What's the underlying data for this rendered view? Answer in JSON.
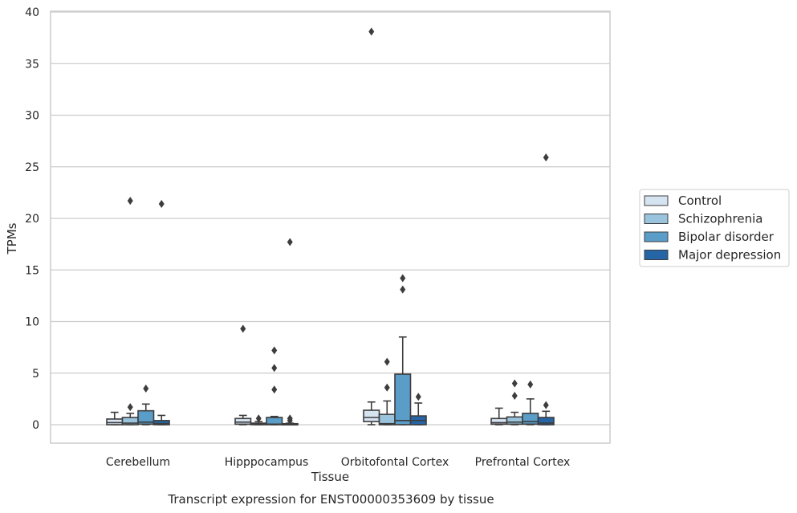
{
  "chart_data": {
    "type": "box",
    "title": "",
    "caption": "Transcript expression for ENST00000353609 by tissue",
    "xlabel": "Tissue",
    "ylabel": "TPMs",
    "ylim": [
      -1.8,
      40
    ],
    "yticks": [
      0,
      5,
      10,
      15,
      20,
      25,
      30,
      35,
      40
    ],
    "grid": "horizontal",
    "legend_position": "right",
    "categories": [
      "Cerebellum",
      "Hipppocampus",
      "Orbitofontal Cortex",
      "Prefrontal Cortex"
    ],
    "series": [
      {
        "name": "Control",
        "color": "#d6e3f1",
        "boxes": [
          {
            "q1": 0.0,
            "median": 0.2,
            "q3": 0.55,
            "whisker_low": 0.0,
            "whisker_high": 1.2,
            "outliers": []
          },
          {
            "q1": 0.05,
            "median": 0.25,
            "q3": 0.6,
            "whisker_low": 0.0,
            "whisker_high": 0.9,
            "outliers": [
              9.3
            ]
          },
          {
            "q1": 0.3,
            "median": 0.7,
            "q3": 1.4,
            "whisker_low": 0.0,
            "whisker_high": 2.2,
            "outliers": [
              38.1
            ]
          },
          {
            "q1": 0.05,
            "median": 0.2,
            "q3": 0.6,
            "whisker_low": 0.0,
            "whisker_high": 1.6,
            "outliers": []
          }
        ]
      },
      {
        "name": "Schizophrenia",
        "color": "#9ac4dd",
        "boxes": [
          {
            "q1": 0.0,
            "median": 0.15,
            "q3": 0.7,
            "whisker_low": 0.0,
            "whisker_high": 1.1,
            "outliers": [
              21.7,
              1.7
            ]
          },
          {
            "q1": 0.0,
            "median": 0.05,
            "q3": 0.15,
            "whisker_low": 0.0,
            "whisker_high": 0.3,
            "outliers": [
              0.6
            ]
          },
          {
            "q1": 0.0,
            "median": 0.1,
            "q3": 1.0,
            "whisker_low": 0.0,
            "whisker_high": 2.3,
            "outliers": [
              6.1,
              3.6
            ]
          },
          {
            "q1": 0.05,
            "median": 0.25,
            "q3": 0.75,
            "whisker_low": 0.0,
            "whisker_high": 1.2,
            "outliers": [
              4.0,
              2.8
            ]
          }
        ]
      },
      {
        "name": "Bipolar disorder",
        "color": "#5a9dc9",
        "boxes": [
          {
            "q1": 0.05,
            "median": 0.25,
            "q3": 1.35,
            "whisker_low": 0.0,
            "whisker_high": 2.0,
            "outliers": [
              3.5
            ]
          },
          {
            "q1": 0.0,
            "median": 0.05,
            "q3": 0.7,
            "whisker_low": 0.0,
            "whisker_high": 0.8,
            "outliers": [
              7.2,
              5.5,
              3.4
            ]
          },
          {
            "q1": 0.0,
            "median": 0.4,
            "q3": 4.9,
            "whisker_low": 0.0,
            "whisker_high": 8.5,
            "outliers": [
              14.2,
              13.1
            ]
          },
          {
            "q1": 0.05,
            "median": 0.3,
            "q3": 1.1,
            "whisker_low": 0.0,
            "whisker_high": 2.5,
            "outliers": [
              3.9
            ]
          }
        ]
      },
      {
        "name": "Major depression",
        "color": "#2565a6",
        "boxes": [
          {
            "q1": 0.0,
            "median": 0.1,
            "q3": 0.4,
            "whisker_low": 0.0,
            "whisker_high": 0.9,
            "outliers": [
              21.4
            ]
          },
          {
            "q1": 0.0,
            "median": 0.05,
            "q3": 0.1,
            "whisker_low": 0.0,
            "whisker_high": 0.15,
            "outliers": [
              17.7,
              0.6,
              0.4
            ]
          },
          {
            "q1": 0.0,
            "median": 0.4,
            "q3": 0.85,
            "whisker_low": 0.0,
            "whisker_high": 2.1,
            "outliers": [
              2.7
            ]
          },
          {
            "q1": 0.0,
            "median": 0.15,
            "q3": 0.7,
            "whisker_low": 0.0,
            "whisker_high": 1.3,
            "outliers": [
              25.9,
              1.9
            ]
          }
        ]
      }
    ]
  }
}
